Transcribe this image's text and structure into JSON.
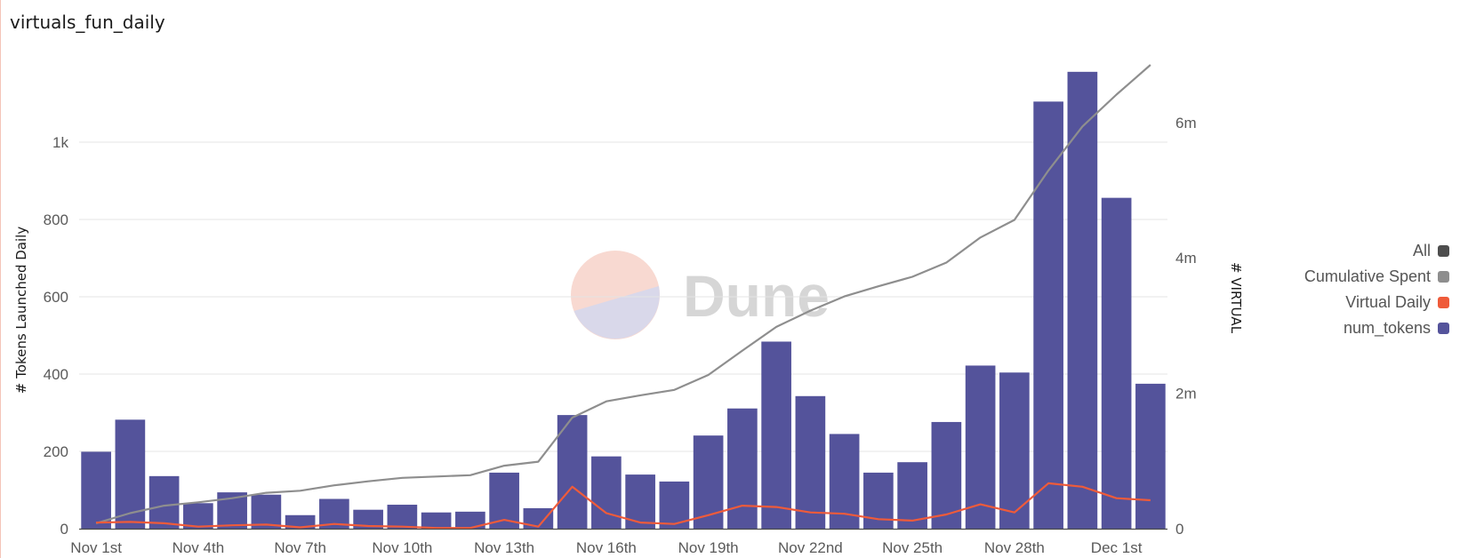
{
  "title": "virtuals_fun_daily",
  "colors": {
    "bar": "#54539b",
    "cumulative": "#8e8e8e",
    "daily": "#ef5b3a",
    "all": "#4d4d4d",
    "grid": "#e4e4e4",
    "watermark_text": "#d6d6d6",
    "watermark_pink": "#f8d9d1",
    "watermark_lilac": "#d9d8ea"
  },
  "watermark": "Dune",
  "legend": [
    {
      "label": "All",
      "color": "#4d4d4d"
    },
    {
      "label": "Cumulative Spent",
      "color": "#8e8e8e"
    },
    {
      "label": "Virtual Daily",
      "color": "#ef5b3a"
    },
    {
      "label": "num_tokens",
      "color": "#54539b"
    }
  ],
  "chart_data": {
    "type": "bar",
    "categories": [
      "Nov 1st",
      "Nov 2nd",
      "Nov 3rd",
      "Nov 4th",
      "Nov 5th",
      "Nov 6th",
      "Nov 7th",
      "Nov 8th",
      "Nov 9th",
      "Nov 10th",
      "Nov 11th",
      "Nov 12th",
      "Nov 13th",
      "Nov 14th",
      "Nov 15th",
      "Nov 16th",
      "Nov 17th",
      "Nov 18th",
      "Nov 19th",
      "Nov 20th",
      "Nov 21st",
      "Nov 22nd",
      "Nov 23rd",
      "Nov 24th",
      "Nov 25th",
      "Nov 26th",
      "Nov 27th",
      "Nov 28th",
      "Nov 29th",
      "Nov 30th",
      "Dec 1st",
      "Dec 2nd"
    ],
    "xticks": [
      "Nov 1st",
      "Nov 4th",
      "Nov 7th",
      "Nov 10th",
      "Nov 13th",
      "Nov 16th",
      "Nov 19th",
      "Nov 22nd",
      "Nov 25th",
      "Nov 28th",
      "Dec 1st"
    ],
    "ylabel": "# Tokens Launched Daily",
    "y2label": "# VIRTUAL",
    "ylim": [
      0,
      1200
    ],
    "y2lim": [
      0,
      6850000
    ],
    "yticks": [
      0,
      200,
      400,
      600,
      800,
      1000
    ],
    "ytick_labels": [
      "0",
      "200",
      "400",
      "600",
      "800",
      "1k"
    ],
    "y2ticks": [
      0,
      2000000,
      4000000,
      6000000
    ],
    "y2tick_labels": [
      "0",
      "2m",
      "4m",
      "6m"
    ],
    "grid": true,
    "legend_position": "right",
    "series": [
      {
        "name": "num_tokens",
        "type": "bar",
        "axis": "left",
        "values": [
          199,
          282,
          136,
          66,
          94,
          88,
          35,
          77,
          49,
          62,
          42,
          44,
          145,
          53,
          294,
          187,
          140,
          122,
          241,
          311,
          484,
          343,
          245,
          145,
          172,
          276,
          422,
          404,
          1105,
          1182,
          856,
          375
        ]
      },
      {
        "name": "Cumulative Spent",
        "type": "line",
        "axis": "right",
        "values": [
          80000,
          230000,
          340000,
          390000,
          450000,
          530000,
          560000,
          640000,
          700000,
          750000,
          770000,
          790000,
          930000,
          990000,
          1640000,
          1880000,
          1970000,
          2050000,
          2270000,
          2630000,
          2980000,
          3220000,
          3430000,
          3580000,
          3720000,
          3930000,
          4300000,
          4560000,
          5290000,
          5940000,
          6410000,
          6850000
        ]
      },
      {
        "name": "Virtual Daily",
        "type": "line",
        "axis": "right",
        "values": [
          90000,
          100000,
          80000,
          30000,
          50000,
          60000,
          20000,
          70000,
          40000,
          30000,
          10000,
          10000,
          130000,
          30000,
          620000,
          230000,
          90000,
          70000,
          200000,
          340000,
          320000,
          240000,
          220000,
          140000,
          120000,
          210000,
          360000,
          240000,
          670000,
          620000,
          450000,
          420000
        ]
      }
    ]
  }
}
